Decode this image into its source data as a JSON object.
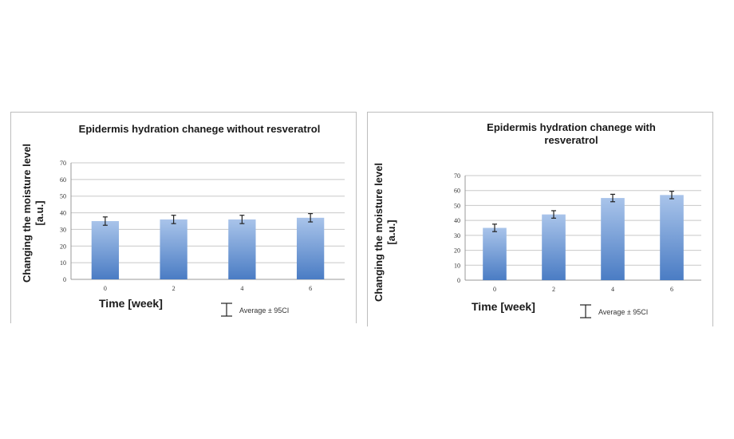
{
  "chart_data": [
    {
      "type": "bar",
      "title": "Epidermis hydration chanege without resveratrol",
      "xlabel": "Time [week]",
      "ylabel": "Changing the moisture level [a.u.]",
      "categories": [
        "0",
        "2",
        "4",
        "6"
      ],
      "values": [
        35,
        36,
        36,
        37
      ],
      "error": [
        2.5,
        2.5,
        2.5,
        2.5
      ],
      "ylim": [
        0,
        70
      ],
      "yticks": [
        "0",
        "10",
        "20",
        "30",
        "40",
        "50",
        "60",
        "70"
      ],
      "grid": true,
      "legend": "Average ± 95CI",
      "bar_color_top": "#a9c4ea",
      "bar_color_bottom": "#4a7cc4"
    },
    {
      "type": "bar",
      "title": "Epidermis hydration chanege with resveratrol",
      "xlabel": "Time [week]",
      "ylabel": "Changing the moisture level [a.u.]",
      "categories": [
        "0",
        "2",
        "4",
        "6"
      ],
      "values": [
        35,
        44,
        55,
        57
      ],
      "error": [
        2.5,
        2.5,
        2.5,
        2.5
      ],
      "ylim": [
        0,
        70
      ],
      "yticks": [
        "0",
        "10",
        "20",
        "30",
        "40",
        "50",
        "60",
        "70"
      ],
      "grid": true,
      "legend": "Average ± 95CI",
      "bar_color_top": "#a9c4ea",
      "bar_color_bottom": "#4a7cc4"
    }
  ]
}
